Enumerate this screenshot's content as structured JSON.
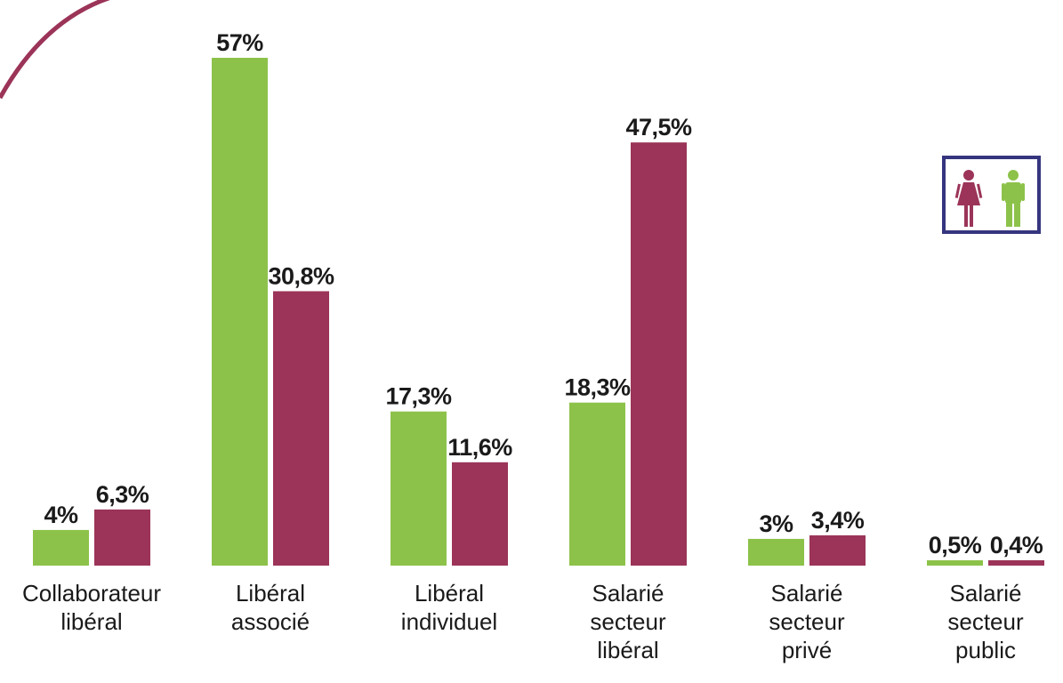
{
  "chart_data": {
    "type": "bar",
    "categories": [
      [
        "Collaborateur",
        "libéral"
      ],
      [
        "Libéral",
        "associé"
      ],
      [
        "Libéral",
        "individuel"
      ],
      [
        "Salarié",
        "secteur",
        "libéral"
      ],
      [
        "Salarié",
        "secteur",
        "privé"
      ],
      [
        "Salarié",
        "secteur",
        "public"
      ]
    ],
    "series": [
      {
        "values": [
          4,
          57,
          17.3,
          18.3,
          3,
          0.5
        ],
        "labels": [
          "4%",
          "57%",
          "17,3%",
          "18,3%",
          "3%",
          "0,5%"
        ],
        "color": "#8dc24a"
      },
      {
        "values": [
          6.3,
          30.8,
          11.6,
          47.5,
          3.4,
          0.4
        ],
        "labels": [
          "6,3%",
          "30,8%",
          "11,6%",
          "47,5%",
          "3,4%",
          "0,4%"
        ],
        "color": "#9b3458"
      }
    ],
    "ylim": [
      0,
      57
    ],
    "grid": false,
    "legend": {
      "placement": "right",
      "icons": [
        "woman-icon",
        "man-icon"
      ],
      "icon_colors": [
        "#9b3458",
        "#8dc24a"
      ],
      "border_color": "#35357f"
    },
    "decoration": {
      "arc_color": "#9b3458"
    }
  }
}
